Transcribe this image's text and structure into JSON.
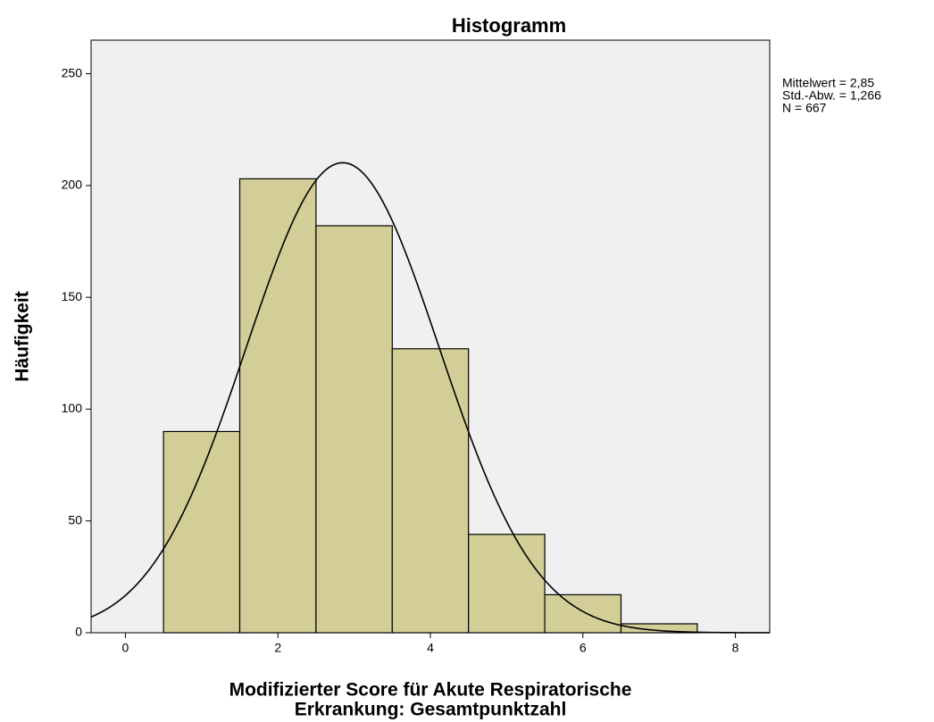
{
  "chart_data": {
    "type": "histogram",
    "title": "Histogramm",
    "xlabel": [
      "Modifizierter Score für Akute Respiratorische",
      "Erkrankung: Gesamtpunktzahl"
    ],
    "ylabel": "Häufigkeit",
    "bins": [
      0.5,
      1.5,
      2.5,
      3.5,
      4.5,
      5.5,
      6.5,
      7.5
    ],
    "values": [
      90,
      203,
      182,
      127,
      44,
      17,
      4
    ],
    "color": "#d3ce97",
    "xlim": [
      -0.45,
      8.45
    ],
    "xticks": [
      0,
      2,
      4,
      6,
      8
    ],
    "ylim": [
      0,
      265
    ],
    "yticks": [
      0,
      50,
      100,
      150,
      200,
      250
    ],
    "stats": [
      {
        "value": 2.85,
        "label": "Mittelwert = 2,85"
      },
      {
        "value": 1.266,
        "label": "Std.-Abw. = 1,266"
      },
      {
        "value": 667,
        "label": "N = 667"
      }
    ],
    "normal_curve": true
  }
}
